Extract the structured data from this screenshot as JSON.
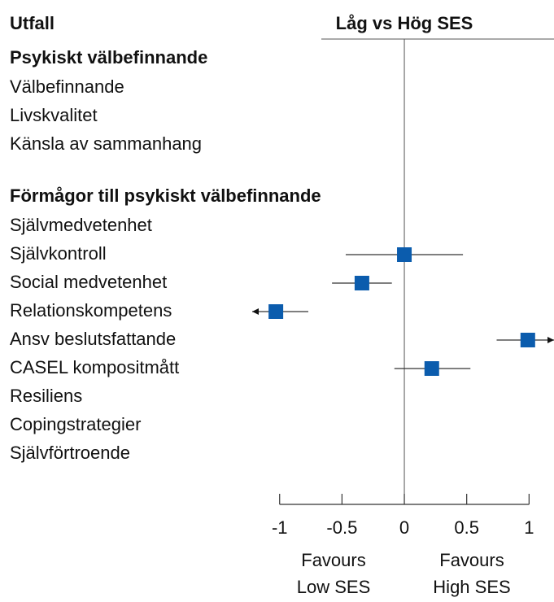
{
  "chart_data": {
    "type": "forest",
    "header": {
      "left": "Utfall",
      "right": "Låg vs Hög SES"
    },
    "color": "#0b5cad",
    "xlim": [
      -1.22,
      1.2
    ],
    "xticks": [
      -1,
      -0.5,
      0,
      0.5,
      1
    ],
    "left_label": [
      "Favours",
      "Low SES"
    ],
    "right_label": [
      "Favours",
      "High SES"
    ],
    "groups": [
      {
        "name": "Psykiskt välbefinnande",
        "rows": [
          {
            "label": "Välbefinnande",
            "estimate": null,
            "ci_low": null,
            "ci_high": null
          },
          {
            "label": "Livskvalitet",
            "estimate": null,
            "ci_low": null,
            "ci_high": null
          },
          {
            "label": "Känsla av sammanhang",
            "estimate": null,
            "ci_low": null,
            "ci_high": null
          }
        ]
      },
      {
        "name": "Förmågor till psykiskt välbefinnande",
        "rows": [
          {
            "label": "Självmedvetenhet",
            "estimate": null,
            "ci_low": null,
            "ci_high": null
          },
          {
            "label": "Självkontroll",
            "estimate": 0,
            "ci_low": -0.47,
            "ci_high": 0.47
          },
          {
            "label": "Social medvetenhet",
            "estimate": -0.34,
            "ci_low": -0.58,
            "ci_high": -0.1
          },
          {
            "label": "Relationskompetens",
            "estimate": -1.03,
            "ci_low": null,
            "ci_high": -0.77
          },
          {
            "label": "Ansv beslutsfattande",
            "estimate": 0.99,
            "ci_low": 0.74,
            "ci_high": null
          },
          {
            "label": "CASEL kompositmått",
            "estimate": 0.22,
            "ci_low": -0.08,
            "ci_high": 0.53
          },
          {
            "label": "Resiliens",
            "estimate": null,
            "ci_low": null,
            "ci_high": null
          },
          {
            "label": "Copingstrategier",
            "estimate": null,
            "ci_low": null,
            "ci_high": null
          },
          {
            "label": "Självförtroende",
            "estimate": null,
            "ci_low": null,
            "ci_high": null
          }
        ]
      }
    ]
  }
}
